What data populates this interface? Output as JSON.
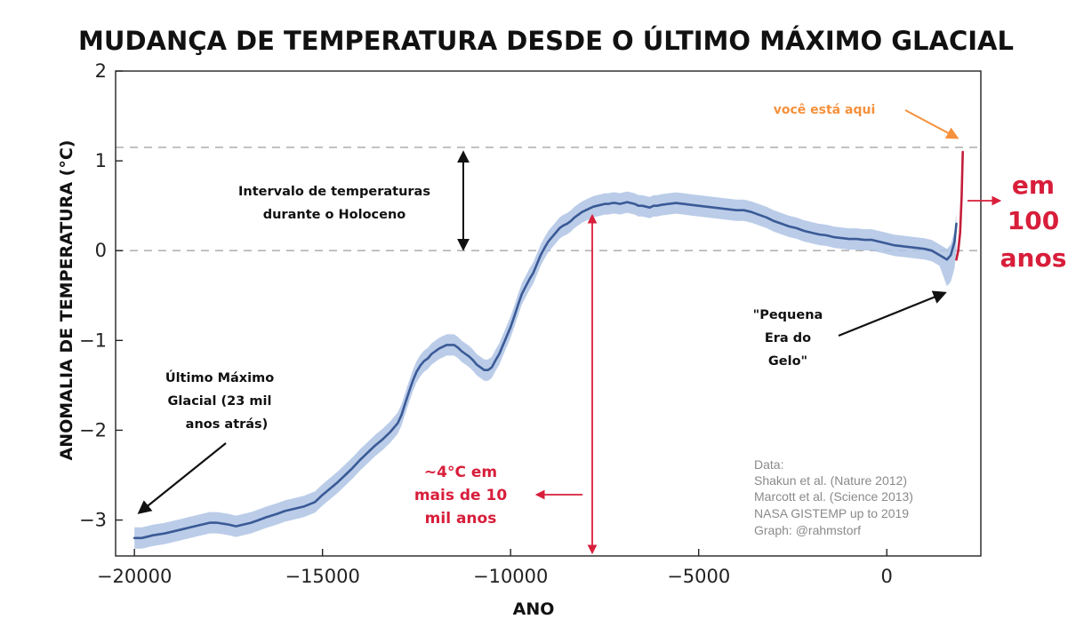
{
  "chart_data": {
    "type": "line",
    "title": "MUDANÇA DE TEMPERATURA DESDE O ÚLTIMO MÁXIMO GLACIAL",
    "xlabel": "ANO",
    "ylabel": "ANOMALIA DE TEMPERATURA (°C)",
    "xlim": [
      -20500,
      2500
    ],
    "ylim": [
      -3.4,
      2.0
    ],
    "x_ticks": [
      -20000,
      -15000,
      -10000,
      -5000,
      0
    ],
    "x_tick_labels": [
      "−20000",
      "−15000",
      "−10000",
      "−5000",
      "0"
    ],
    "y_ticks": [
      -3,
      -2,
      -1,
      0,
      1,
      2
    ],
    "y_tick_labels": [
      "−3",
      "−2",
      "−1",
      "0",
      "1",
      "2"
    ],
    "grid": false,
    "reference_lines": [
      1.15,
      0
    ],
    "colors": {
      "series_line": "#3a5a96",
      "uncertainty_band": "#aec3e4",
      "modern_line": "#c41e3a",
      "reference_line": "#b4b4b4",
      "annotation_red": "#d81e3a",
      "annotation_orange": "#f5913c"
    },
    "series": [
      {
        "x": [
          -20000,
          -19800,
          -19500,
          -19200,
          -19000,
          -18700,
          -18500,
          -18200,
          -18000,
          -17800,
          -17500,
          -17300,
          -17100,
          -16900,
          -16700,
          -16500,
          -16200,
          -16000,
          -15700,
          -15500,
          -15200,
          -15000,
          -14800,
          -14600,
          -14400,
          -14200,
          -14000,
          -13800,
          -13600,
          -13400,
          -13200,
          -13000,
          -12900,
          -12800,
          -12700,
          -12600,
          -12500,
          -12400,
          -12300,
          -12200,
          -12100,
          -12000,
          -11900,
          -11800,
          -11700,
          -11600,
          -11500,
          -11400,
          -11300,
          -11200,
          -11100,
          -11000,
          -10900,
          -10800,
          -10700,
          -10600,
          -10500,
          -10400,
          -10300,
          -10200,
          -10100,
          -10000,
          -9900,
          -9800,
          -9700,
          -9600,
          -9500,
          -9400,
          -9300,
          -9200,
          -9100,
          -9000,
          -8900,
          -8800,
          -8700,
          -8600,
          -8500,
          -8400,
          -8300,
          -8200,
          -8100,
          -8000,
          -7900,
          -7800,
          -7700,
          -7600,
          -7500,
          -7400,
          -7300,
          -7200,
          -7100,
          -7000,
          -6900,
          -6800,
          -6700,
          -6600,
          -6500,
          -6400,
          -6300,
          -6200,
          -6100,
          -6000,
          -5800,
          -5600,
          -5400,
          -5200,
          -5000,
          -4800,
          -4600,
          -4400,
          -4200,
          -4000,
          -3800,
          -3600,
          -3400,
          -3200,
          -3000,
          -2800,
          -2600,
          -2400,
          -2200,
          -2000,
          -1800,
          -1600,
          -1400,
          -1200,
          -1000,
          -800,
          -600,
          -400,
          -200,
          0,
          200,
          400,
          600,
          800,
          1000,
          1200,
          1400,
          1600,
          1700,
          1800,
          1850
        ],
        "values": [
          -3.2,
          -3.2,
          -3.17,
          -3.15,
          -3.13,
          -3.1,
          -3.08,
          -3.05,
          -3.03,
          -3.03,
          -3.05,
          -3.07,
          -3.05,
          -3.03,
          -3.0,
          -2.97,
          -2.93,
          -2.9,
          -2.87,
          -2.85,
          -2.8,
          -2.72,
          -2.65,
          -2.58,
          -2.5,
          -2.42,
          -2.33,
          -2.25,
          -2.17,
          -2.1,
          -2.02,
          -1.92,
          -1.83,
          -1.7,
          -1.57,
          -1.45,
          -1.35,
          -1.28,
          -1.23,
          -1.2,
          -1.15,
          -1.12,
          -1.09,
          -1.07,
          -1.05,
          -1.05,
          -1.05,
          -1.08,
          -1.12,
          -1.15,
          -1.18,
          -1.22,
          -1.27,
          -1.3,
          -1.33,
          -1.33,
          -1.3,
          -1.22,
          -1.15,
          -1.05,
          -0.95,
          -0.85,
          -0.73,
          -0.6,
          -0.48,
          -0.4,
          -0.32,
          -0.25,
          -0.15,
          -0.05,
          0.03,
          0.1,
          0.15,
          0.2,
          0.25,
          0.28,
          0.3,
          0.33,
          0.37,
          0.4,
          0.43,
          0.45,
          0.47,
          0.49,
          0.5,
          0.51,
          0.52,
          0.52,
          0.53,
          0.53,
          0.52,
          0.53,
          0.54,
          0.53,
          0.52,
          0.5,
          0.5,
          0.49,
          0.48,
          0.5,
          0.5,
          0.51,
          0.52,
          0.53,
          0.52,
          0.51,
          0.5,
          0.49,
          0.48,
          0.47,
          0.46,
          0.45,
          0.45,
          0.43,
          0.4,
          0.37,
          0.33,
          0.3,
          0.27,
          0.25,
          0.22,
          0.2,
          0.18,
          0.17,
          0.15,
          0.14,
          0.13,
          0.13,
          0.12,
          0.12,
          0.1,
          0.08,
          0.06,
          0.05,
          0.04,
          0.03,
          0.02,
          0.0,
          -0.05,
          -0.1,
          -0.05,
          0.1,
          0.3
        ]
      },
      {
        "x": [
          1850,
          1900,
          1950,
          1990,
          2019
        ],
        "values": [
          -0.1,
          0.0,
          0.2,
          0.6,
          1.1
        ]
      }
    ],
    "annotations": {
      "holocene_range": [
        "Intervalo de temperaturas",
        "durante o Holoceno"
      ],
      "glacial_max": [
        "Último Máximo",
        "Glacial (23 mil",
        "anos atrás)"
      ],
      "warming": [
        "~4°C em",
        "mais de 10",
        "mil anos"
      ],
      "little_ice_age": [
        "\"Pequena",
        "Era do",
        "Gelo\""
      ],
      "you_are_here": "você está aqui",
      "in_100_years": [
        "em",
        "100",
        "anos"
      ]
    },
    "source_note": [
      "Data:",
      "Shakun et al. (Nature 2012)",
      "Marcott et al. (Science 2013)",
      "NASA GISTEMP up to 2019",
      "Graph: @rahmstorf"
    ]
  }
}
